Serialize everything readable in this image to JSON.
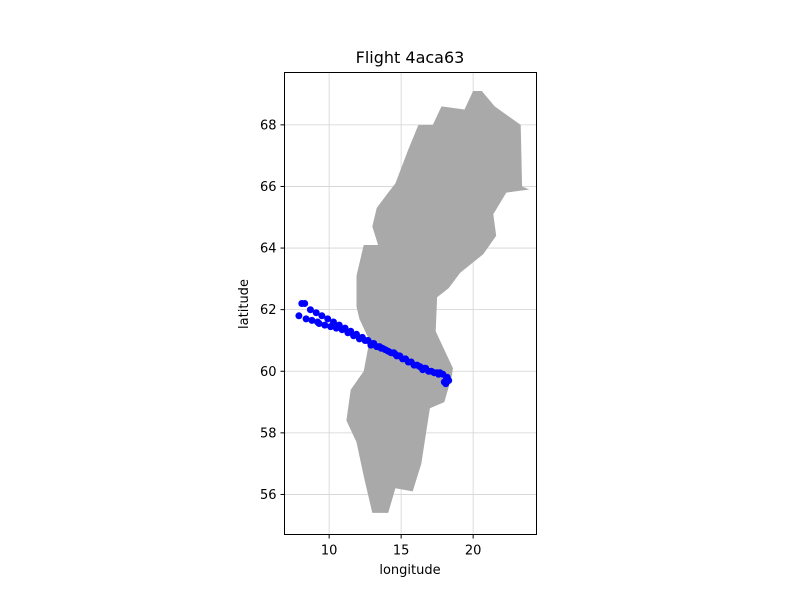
{
  "chart_data": {
    "type": "scatter",
    "title": "Flight 4aca63",
    "xlabel": "longitude",
    "ylabel": "latitude",
    "xlim": [
      6.9,
      24.4
    ],
    "ylim": [
      54.7,
      69.7
    ],
    "xticks": [
      10,
      15,
      20
    ],
    "yticks": [
      56,
      58,
      60,
      62,
      64,
      66,
      68
    ],
    "grid": true,
    "point_color": "#0000ff",
    "land_color": "#a9a9a9",
    "land_outline": [
      [
        13.0,
        55.4
      ],
      [
        12.4,
        56.6
      ],
      [
        11.9,
        57.7
      ],
      [
        11.2,
        58.4
      ],
      [
        11.5,
        59.4
      ],
      [
        12.4,
        60.0
      ],
      [
        12.8,
        61.0
      ],
      [
        12.1,
        61.7
      ],
      [
        11.9,
        62.1
      ],
      [
        11.9,
        63.1
      ],
      [
        12.4,
        64.1
      ],
      [
        13.4,
        64.1
      ],
      [
        13.0,
        64.7
      ],
      [
        13.3,
        65.3
      ],
      [
        14.1,
        65.8
      ],
      [
        14.6,
        66.1
      ],
      [
        15.5,
        67.2
      ],
      [
        16.2,
        68.0
      ],
      [
        17.2,
        68.0
      ],
      [
        17.8,
        68.6
      ],
      [
        19.4,
        68.5
      ],
      [
        20.0,
        69.1
      ],
      [
        20.6,
        69.1
      ],
      [
        21.5,
        68.6
      ],
      [
        23.3,
        68.0
      ],
      [
        23.4,
        66.0
      ],
      [
        23.9,
        65.9
      ],
      [
        22.3,
        65.8
      ],
      [
        21.4,
        65.1
      ],
      [
        21.6,
        64.4
      ],
      [
        20.7,
        63.8
      ],
      [
        19.1,
        63.2
      ],
      [
        18.3,
        62.7
      ],
      [
        17.5,
        62.4
      ],
      [
        17.4,
        61.3
      ],
      [
        18.0,
        60.7
      ],
      [
        18.6,
        60.1
      ],
      [
        18.5,
        59.8
      ],
      [
        18.0,
        59.0
      ],
      [
        17.0,
        58.8
      ],
      [
        16.7,
        57.9
      ],
      [
        16.4,
        57.0
      ],
      [
        15.8,
        56.1
      ],
      [
        14.6,
        56.2
      ],
      [
        14.1,
        55.4
      ]
    ],
    "points": [
      [
        8.1,
        62.2
      ],
      [
        8.3,
        62.2
      ],
      [
        8.7,
        62.0
      ],
      [
        9.1,
        61.9
      ],
      [
        9.5,
        61.8
      ],
      [
        9.9,
        61.7
      ],
      [
        10.3,
        61.6
      ],
      [
        10.7,
        61.5
      ],
      [
        11.1,
        61.4
      ],
      [
        11.5,
        61.3
      ],
      [
        11.9,
        61.2
      ],
      [
        12.3,
        61.1
      ],
      [
        12.7,
        61.0
      ],
      [
        13.1,
        60.9
      ],
      [
        13.5,
        60.8
      ],
      [
        13.9,
        60.7
      ],
      [
        14.3,
        60.6
      ],
      [
        14.7,
        60.5
      ],
      [
        15.1,
        60.4
      ],
      [
        15.5,
        60.3
      ],
      [
        15.9,
        60.2
      ],
      [
        16.3,
        60.15
      ],
      [
        16.7,
        60.1
      ],
      [
        17.1,
        60.0
      ],
      [
        17.5,
        59.95
      ],
      [
        17.9,
        59.9
      ],
      [
        18.2,
        59.8
      ],
      [
        18.3,
        59.7
      ],
      [
        18.1,
        59.6
      ],
      [
        17.7,
        59.95
      ],
      [
        17.3,
        59.95
      ],
      [
        16.9,
        60.0
      ],
      [
        16.5,
        60.05
      ],
      [
        16.1,
        60.2
      ],
      [
        15.7,
        60.3
      ],
      [
        15.3,
        60.4
      ],
      [
        14.9,
        60.5
      ],
      [
        14.5,
        60.6
      ],
      [
        14.1,
        60.65
      ],
      [
        13.7,
        60.75
      ],
      [
        13.3,
        60.8
      ],
      [
        12.9,
        60.9
      ],
      [
        12.5,
        61.0
      ],
      [
        12.1,
        61.05
      ],
      [
        11.7,
        61.15
      ],
      [
        11.3,
        61.25
      ],
      [
        10.9,
        61.35
      ],
      [
        10.5,
        61.4
      ],
      [
        10.1,
        61.45
      ],
      [
        9.7,
        61.5
      ],
      [
        9.2,
        61.6
      ],
      [
        8.8,
        61.65
      ],
      [
        8.4,
        61.7
      ],
      [
        7.9,
        61.8
      ],
      [
        9.3,
        61.55
      ],
      [
        12.9,
        60.85
      ],
      [
        13.6,
        60.75
      ],
      [
        14.6,
        60.55
      ],
      [
        16.6,
        60.1
      ],
      [
        17.6,
        59.9
      ],
      [
        18.15,
        59.75
      ],
      [
        18.0,
        59.65
      ]
    ]
  }
}
